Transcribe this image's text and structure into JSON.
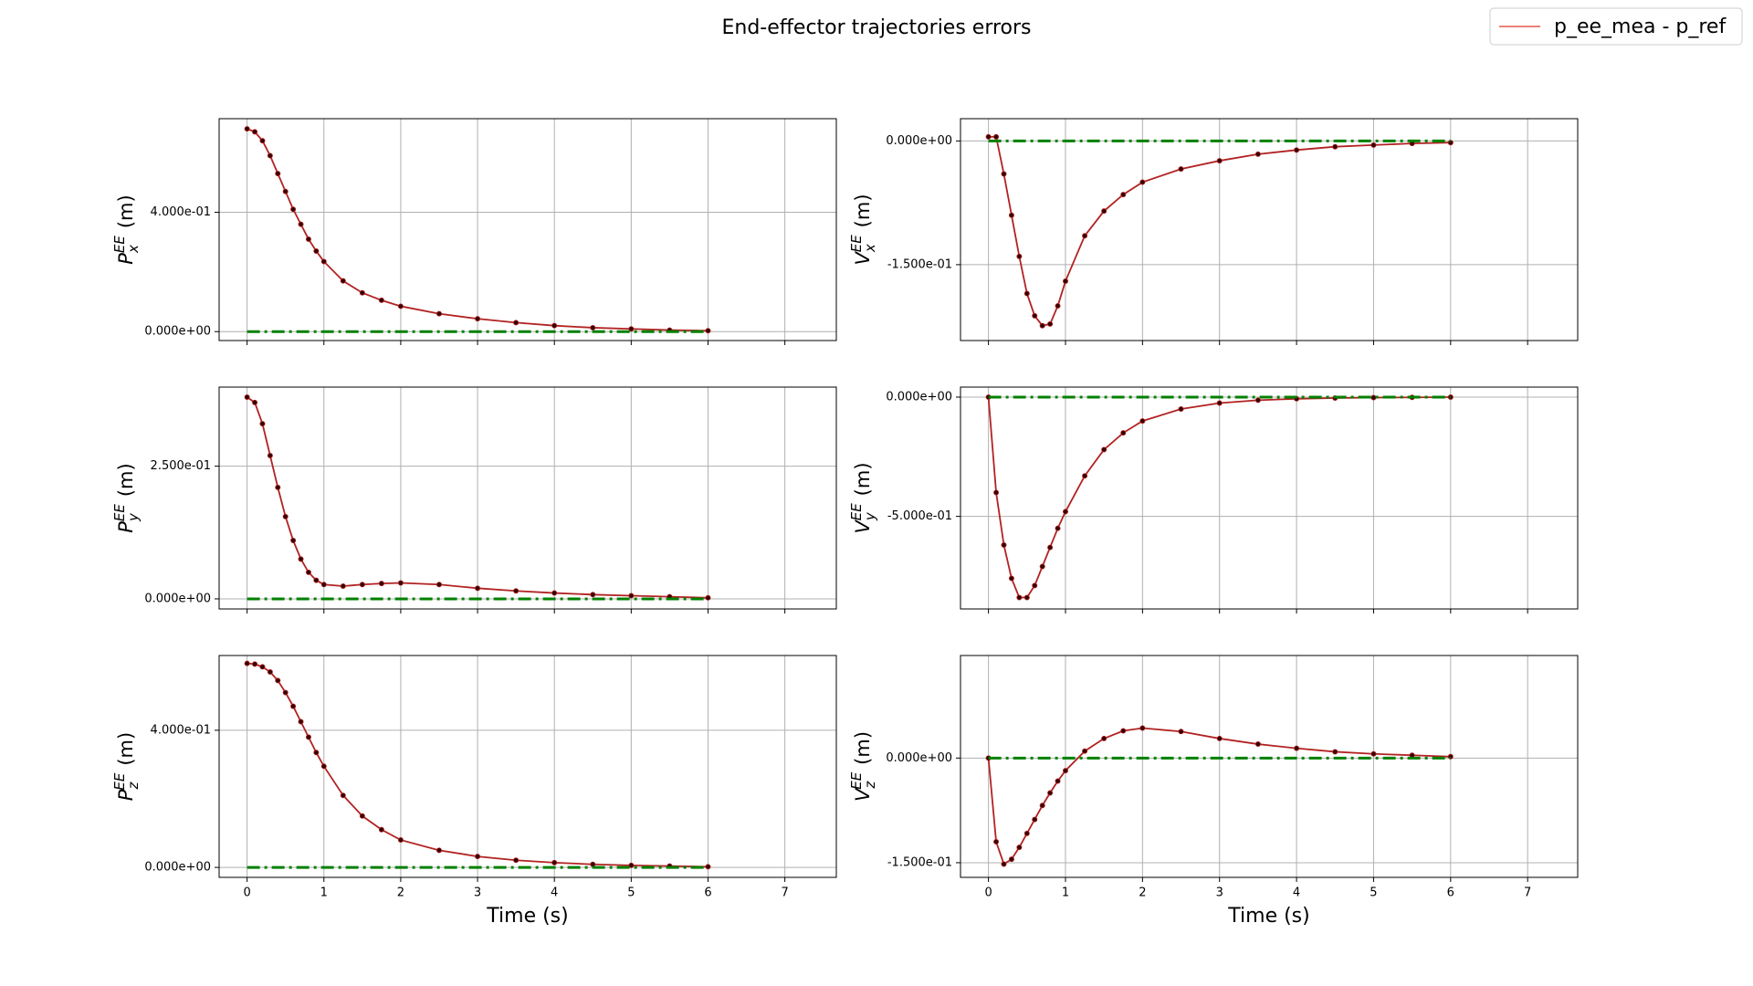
{
  "title": "End-effector trajectories errors",
  "legend": {
    "name": "p_ee_mea - p_ref",
    "color": "#e8706a",
    "loc": "upper right"
  },
  "chart_data": [
    {
      "type": "line",
      "ylabel": {
        "symbol": "P",
        "sub": "x",
        "sup": "EE",
        "unit": "(m)"
      },
      "xlim": [
        -0.364,
        7.67
      ],
      "ylim": [
        -0.03,
        0.714
      ],
      "xticks": [
        0,
        1,
        2,
        3,
        4,
        5,
        6,
        7
      ],
      "show_xtick_labels": false,
      "yticks": [
        {
          "value": 0,
          "label": "0.000e+00"
        },
        {
          "value": 0.4,
          "label": "4.000e-01"
        }
      ],
      "grid": true,
      "x": [
        0,
        0.1,
        0.2,
        0.3,
        0.4,
        0.5,
        0.6,
        0.7,
        0.8,
        0.9,
        1,
        1.25,
        1.5,
        1.75,
        2,
        2.5,
        3,
        3.5,
        4,
        4.5,
        5,
        5.5,
        6
      ],
      "series": [
        {
          "name": "p_ee_mea - p_ref",
          "color": "#b22222",
          "marker": true,
          "values": [
            0.68,
            0.67,
            0.64,
            0.59,
            0.53,
            0.47,
            0.41,
            0.36,
            0.31,
            0.27,
            0.235,
            0.17,
            0.13,
            0.105,
            0.085,
            0.06,
            0.043,
            0.03,
            0.02,
            0.013,
            0.009,
            0.005,
            0.003
          ]
        },
        {
          "color": "green",
          "style": "dashdot",
          "x": [
            0,
            6
          ],
          "values": [
            0,
            0
          ]
        }
      ]
    },
    {
      "type": "line",
      "ylabel": {
        "symbol": "V",
        "sub": "x",
        "sup": "EE",
        "unit": "(m)"
      },
      "xlim": [
        -0.363,
        7.65
      ],
      "ylim": [
        -0.242,
        0.027
      ],
      "xticks": [
        0,
        1,
        2,
        3,
        4,
        5,
        6,
        7
      ],
      "show_xtick_labels": false,
      "yticks": [
        {
          "value": -0.15,
          "label": "-1.500e-01"
        },
        {
          "value": 0,
          "label": "0.000e+00"
        }
      ],
      "grid": true,
      "x": [
        0,
        0.1,
        0.2,
        0.3,
        0.4,
        0.5,
        0.6,
        0.7,
        0.8,
        0.9,
        1,
        1.25,
        1.5,
        1.75,
        2,
        2.5,
        3,
        3.5,
        4,
        4.5,
        5,
        5.5,
        6
      ],
      "series": [
        {
          "name": "p_ee_mea - p_ref",
          "color": "#b22222",
          "marker": true,
          "values": [
            0.005,
            0.005,
            -0.04,
            -0.09,
            -0.14,
            -0.185,
            -0.212,
            -0.224,
            -0.222,
            -0.2,
            -0.17,
            -0.115,
            -0.085,
            -0.065,
            -0.05,
            -0.034,
            -0.024,
            -0.016,
            -0.011,
            -0.007,
            -0.005,
            -0.003,
            -0.002
          ]
        },
        {
          "color": "green",
          "style": "dashdot",
          "x": [
            0,
            6
          ],
          "values": [
            0,
            0
          ]
        }
      ]
    },
    {
      "type": "line",
      "ylabel": {
        "symbol": "P",
        "sub": "y",
        "sup": "EE",
        "unit": "(m)"
      },
      "xlim": [
        -0.364,
        7.67
      ],
      "ylim": [
        -0.019,
        0.399
      ],
      "xticks": [
        0,
        1,
        2,
        3,
        4,
        5,
        6,
        7
      ],
      "show_xtick_labels": false,
      "yticks": [
        {
          "value": 0,
          "label": "0.000e+00"
        },
        {
          "value": 0.25,
          "label": "2.500e-01"
        }
      ],
      "grid": true,
      "x": [
        0,
        0.1,
        0.2,
        0.3,
        0.4,
        0.5,
        0.6,
        0.7,
        0.8,
        0.9,
        1,
        1.25,
        1.5,
        1.75,
        2,
        2.5,
        3,
        3.5,
        4,
        4.5,
        5,
        5.5,
        6
      ],
      "series": [
        {
          "name": "p_ee_mea - p_ref",
          "color": "#b22222",
          "marker": true,
          "values": [
            0.38,
            0.37,
            0.33,
            0.27,
            0.21,
            0.155,
            0.11,
            0.075,
            0.05,
            0.035,
            0.027,
            0.024,
            0.027,
            0.029,
            0.03,
            0.027,
            0.02,
            0.015,
            0.011,
            0.008,
            0.006,
            0.004,
            0.002
          ]
        },
        {
          "color": "green",
          "style": "dashdot",
          "x": [
            0,
            6
          ],
          "values": [
            0,
            0
          ]
        }
      ]
    },
    {
      "type": "line",
      "ylabel": {
        "symbol": "V",
        "sub": "y",
        "sup": "EE",
        "unit": "(m)"
      },
      "xlim": [
        -0.363,
        7.65
      ],
      "ylim": [
        -0.888,
        0.042
      ],
      "xticks": [
        0,
        1,
        2,
        3,
        4,
        5,
        6,
        7
      ],
      "show_xtick_labels": false,
      "yticks": [
        {
          "value": -0.5,
          "label": "-5.000e-01"
        },
        {
          "value": 0,
          "label": "0.000e+00"
        }
      ],
      "grid": true,
      "x": [
        0,
        0.1,
        0.2,
        0.3,
        0.4,
        0.5,
        0.6,
        0.7,
        0.8,
        0.9,
        1,
        1.25,
        1.5,
        1.75,
        2,
        2.5,
        3,
        3.5,
        4,
        4.5,
        5,
        5.5,
        6
      ],
      "series": [
        {
          "name": "p_ee_mea - p_ref",
          "color": "#b22222",
          "marker": true,
          "values": [
            0,
            -0.4,
            -0.62,
            -0.76,
            -0.84,
            -0.84,
            -0.79,
            -0.71,
            -0.63,
            -0.55,
            -0.48,
            -0.33,
            -0.22,
            -0.15,
            -0.1,
            -0.05,
            -0.025,
            -0.013,
            -0.007,
            -0.004,
            -0.002,
            -0.001,
            0
          ]
        },
        {
          "color": "green",
          "style": "dashdot",
          "x": [
            0,
            6
          ],
          "values": [
            0,
            0
          ]
        }
      ]
    },
    {
      "type": "line",
      "ylabel": {
        "symbol": "P",
        "sub": "z",
        "sup": "EE",
        "unit": "(m)"
      },
      "xlim": [
        -0.364,
        7.67
      ],
      "ylim": [
        -0.029,
        0.618
      ],
      "xticks": [
        0,
        1,
        2,
        3,
        4,
        5,
        6,
        7
      ],
      "show_xtick_labels": true,
      "xlabel": "Time (s)",
      "yticks": [
        {
          "value": 0,
          "label": "0.000e+00"
        },
        {
          "value": 0.4,
          "label": "4.000e-01"
        }
      ],
      "grid": true,
      "x": [
        0,
        0.1,
        0.2,
        0.3,
        0.4,
        0.5,
        0.6,
        0.7,
        0.8,
        0.9,
        1,
        1.25,
        1.5,
        1.75,
        2,
        2.5,
        3,
        3.5,
        4,
        4.5,
        5,
        5.5,
        6
      ],
      "series": [
        {
          "name": "p_ee_mea - p_ref",
          "color": "#b22222",
          "marker": true,
          "values": [
            0.595,
            0.593,
            0.585,
            0.57,
            0.545,
            0.51,
            0.47,
            0.425,
            0.38,
            0.335,
            0.295,
            0.21,
            0.15,
            0.11,
            0.08,
            0.05,
            0.032,
            0.021,
            0.014,
            0.009,
            0.006,
            0.004,
            0.002
          ]
        },
        {
          "color": "green",
          "style": "dashdot",
          "x": [
            0,
            6
          ],
          "values": [
            0,
            0
          ]
        }
      ]
    },
    {
      "type": "line",
      "ylabel": {
        "symbol": "V",
        "sub": "z",
        "sup": "EE",
        "unit": "(m)"
      },
      "xlim": [
        -0.363,
        7.65
      ],
      "ylim": [
        -0.171,
        0.147
      ],
      "xticks": [
        0,
        1,
        2,
        3,
        4,
        5,
        6,
        7
      ],
      "show_xtick_labels": true,
      "xlabel": "Time (s)",
      "yticks": [
        {
          "value": -0.15,
          "label": "-1.500e-01"
        },
        {
          "value": 0,
          "label": "0.000e+00"
        }
      ],
      "grid": true,
      "x": [
        0,
        0.1,
        0.2,
        0.3,
        0.4,
        0.5,
        0.6,
        0.7,
        0.8,
        0.9,
        1,
        1.25,
        1.5,
        1.75,
        2,
        2.5,
        3,
        3.5,
        4,
        4.5,
        5,
        5.5,
        6
      ],
      "series": [
        {
          "name": "p_ee_mea - p_ref",
          "color": "#b22222",
          "marker": true,
          "values": [
            0,
            -0.12,
            -0.152,
            -0.145,
            -0.128,
            -0.108,
            -0.088,
            -0.068,
            -0.05,
            -0.033,
            -0.018,
            0.01,
            0.028,
            0.039,
            0.043,
            0.038,
            0.028,
            0.02,
            0.014,
            0.009,
            0.006,
            0.004,
            0.002
          ]
        },
        {
          "color": "green",
          "style": "dashdot",
          "x": [
            0,
            6
          ],
          "values": [
            0,
            0
          ]
        }
      ]
    }
  ]
}
